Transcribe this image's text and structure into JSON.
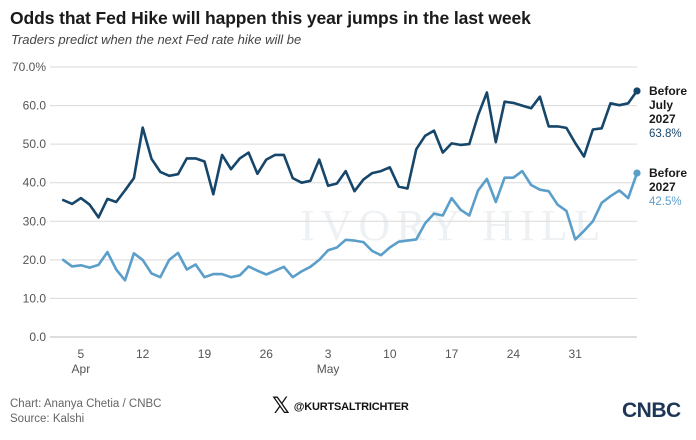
{
  "header": {
    "title": "Odds that Fed Hike will happen this year jumps in the last week",
    "subtitle": "Traders predict when the next Fed rate hike will be"
  },
  "footer": {
    "credit": "Chart: Ananya Chetia / CNBC",
    "source": "Source: Kalshi",
    "x_handle": "@KURTSALTRICHTER",
    "logo": "CNBC"
  },
  "watermark": "IVORY HILL",
  "colors": {
    "dark_series": "#17466b",
    "light_series": "#5b9ec9",
    "grid": "#d9d9d9"
  },
  "chart_data": {
    "type": "line",
    "ylim": [
      0,
      70
    ],
    "y_ticks": [
      "0.0",
      "10.0",
      "20.0",
      "30.0",
      "40.0",
      "50.0",
      "60.0",
      "70.0%"
    ],
    "y_tick_values": [
      0,
      10,
      20,
      30,
      40,
      50,
      60,
      70
    ],
    "x_ticks": [
      {
        "day": 2,
        "label": "5",
        "sub": "Apr"
      },
      {
        "day": 9,
        "label": "12",
        "sub": ""
      },
      {
        "day": 16,
        "label": "19",
        "sub": ""
      },
      {
        "day": 23,
        "label": "26",
        "sub": ""
      },
      {
        "day": 30,
        "label": "3",
        "sub": "May"
      },
      {
        "day": 37,
        "label": "10",
        "sub": ""
      },
      {
        "day": 44,
        "label": "17",
        "sub": ""
      },
      {
        "day": 51,
        "label": "24",
        "sub": ""
      },
      {
        "day": 58,
        "label": "31",
        "sub": ""
      }
    ],
    "x_range": [
      -1.5,
      65
    ],
    "series": [
      {
        "name": "Before July 2027",
        "label_lines": [
          "Before",
          "July",
          "2027"
        ],
        "end_value": "63.8%",
        "values": [
          35.5,
          34.5,
          36,
          34.3,
          31,
          35.8,
          35,
          38,
          41.2,
          54.3,
          46.2,
          42.8,
          41.8,
          42.2,
          46.3,
          46.3,
          45.5,
          37,
          47.2,
          43.5,
          46.3,
          47.8,
          42.3,
          46,
          47.2,
          47.2,
          41.2,
          40,
          40.5,
          46,
          39.2,
          39.8,
          43,
          37.8,
          40.8,
          42.5,
          43,
          44,
          39,
          38.5,
          48.7,
          52.2,
          53.5,
          47.8,
          50.2,
          49.8,
          50,
          57.5,
          63.4,
          50.5,
          61,
          60.7,
          60,
          59.3,
          62.3,
          54.6,
          54.6,
          54.2,
          50.3,
          46.8,
          53.8,
          54.1,
          60.6,
          60.1,
          60.6,
          63.8
        ]
      },
      {
        "name": "Before 2027",
        "label_lines": [
          "Before",
          "2027"
        ],
        "end_value": "42.5%",
        "values": [
          20,
          18.3,
          18.6,
          18,
          18.7,
          22,
          17.5,
          14.7,
          21.7,
          20,
          16.5,
          15.5,
          20,
          21.8,
          17.5,
          18.8,
          15.5,
          16.3,
          16.3,
          15.5,
          16,
          18.3,
          17.2,
          16.2,
          17.2,
          18.2,
          15.5,
          17,
          18.2,
          20,
          22.5,
          23.2,
          25.2,
          25,
          24.6,
          22.3,
          21.2,
          23.2,
          24.7,
          25,
          25.3,
          29.5,
          32,
          31.5,
          36,
          33,
          31.5,
          38,
          41,
          35,
          41.3,
          41.3,
          43,
          39.4,
          38.2,
          37.8,
          34.3,
          32.7,
          25.3,
          27.5,
          30,
          34.8,
          36.5,
          38,
          36,
          42.5
        ]
      }
    ]
  }
}
